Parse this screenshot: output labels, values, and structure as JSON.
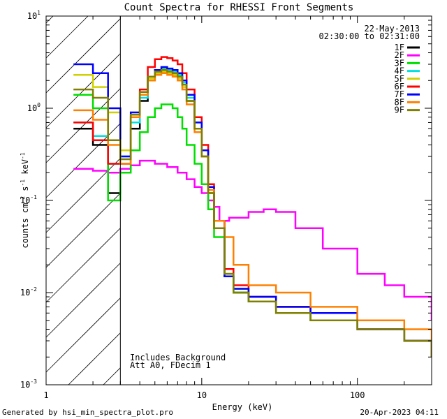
{
  "chart_data": {
    "type": "line",
    "title": "Count Spectra for RHESSI Front Segments",
    "xlabel": "Energy (keV)",
    "ylabel": "counts cm",
    "ylabel_sup1": "-2",
    "ylabel_mid": " s",
    "ylabel_sup2": "-1",
    "ylabel_unit": " keV",
    "ylabel_sup3": "-1",
    "xscale": "log",
    "yscale": "log",
    "xlim": [
      1,
      300
    ],
    "ylim": [
      0.001,
      10
    ],
    "x_major_ticks": [
      {
        "value": 1,
        "label": "1"
      },
      {
        "value": 10,
        "label": "10"
      },
      {
        "value": 100,
        "label": "100"
      }
    ],
    "y_major_ticks": [
      {
        "value": 0.001,
        "base": "10",
        "exp": "-3"
      },
      {
        "value": 0.01,
        "base": "10",
        "exp": "-2"
      },
      {
        "value": 0.1,
        "base": "10",
        "exp": "-1"
      },
      {
        "value": 1,
        "base": "10",
        "exp": "0"
      },
      {
        "value": 10,
        "base": "10",
        "exp": "1"
      }
    ],
    "date": "22-May-2013",
    "time_range": "02:30:00 to 02:31:00",
    "annotations": [
      "Includes Background",
      "Att A0, FDecim 1"
    ],
    "attenuator_edge_keV": 3,
    "legend_position": "top-right",
    "series": [
      {
        "name": "1F",
        "color": "#000000",
        "x": [
          1.5,
          2.0,
          2.5,
          3.0,
          3.5,
          4.0,
          4.5,
          5.0,
          5.5,
          6.0,
          6.5,
          7.0,
          7.5,
          8.0,
          9.0,
          10.0,
          11.0,
          12.0,
          14.0,
          16.0,
          20.0,
          30.0,
          50.0,
          100.0,
          200.0,
          300.0
        ],
        "y": [
          0.6,
          0.4,
          0.12,
          0.22,
          0.6,
          1.2,
          2.0,
          2.4,
          2.6,
          2.5,
          2.4,
          2.2,
          1.8,
          1.2,
          0.6,
          0.3,
          0.12,
          0.05,
          0.015,
          0.01,
          0.008,
          0.006,
          0.005,
          0.004,
          0.003,
          0.002
        ]
      },
      {
        "name": "2F",
        "color": "#ff00ff",
        "x": [
          1.5,
          2.0,
          2.5,
          3.0,
          3.5,
          4.0,
          5.0,
          6.0,
          7.0,
          8.0,
          9.0,
          10.0,
          11.0,
          12.0,
          13.0,
          15.0,
          20.0,
          25.0,
          30.0,
          40.0,
          60.0,
          100.0,
          150.0,
          200.0,
          300.0
        ],
        "y": [
          0.22,
          0.21,
          0.2,
          0.22,
          0.24,
          0.27,
          0.25,
          0.23,
          0.2,
          0.17,
          0.14,
          0.12,
          0.1,
          0.085,
          0.06,
          0.065,
          0.075,
          0.08,
          0.075,
          0.05,
          0.03,
          0.016,
          0.012,
          0.009,
          0.005
        ]
      },
      {
        "name": "3F",
        "color": "#00e000",
        "x": [
          1.5,
          2.0,
          2.5,
          3.0,
          3.5,
          4.0,
          4.5,
          5.0,
          5.5,
          6.0,
          6.5,
          7.0,
          7.5,
          8.0,
          9.0,
          10.0,
          11.0,
          12.0,
          14.0,
          16.0,
          20.0,
          30.0,
          50.0,
          100.0,
          200.0,
          300.0
        ],
        "y": [
          1.4,
          1.0,
          0.1,
          0.2,
          0.35,
          0.55,
          0.8,
          1.0,
          1.1,
          1.1,
          1.0,
          0.8,
          0.6,
          0.4,
          0.25,
          0.15,
          0.08,
          0.04,
          0.015,
          0.01,
          0.008,
          0.006,
          0.005,
          0.004,
          0.003,
          0.002
        ]
      },
      {
        "name": "4F",
        "color": "#00e0e0",
        "x": [
          1.5,
          2.0,
          2.5,
          3.0,
          3.5,
          4.0,
          4.5,
          5.0,
          5.5,
          6.0,
          6.5,
          7.0,
          7.5,
          8.0,
          9.0,
          10.0,
          11.0,
          12.0,
          14.0,
          16.0,
          20.0,
          30.0,
          50.0,
          100.0,
          200.0,
          300.0
        ],
        "y": [
          0.7,
          0.5,
          0.25,
          0.3,
          0.7,
          1.3,
          2.2,
          2.6,
          2.7,
          2.6,
          2.5,
          2.3,
          1.9,
          1.3,
          0.7,
          0.35,
          0.14,
          0.06,
          0.016,
          0.011,
          0.009,
          0.007,
          0.006,
          0.004,
          0.003,
          0.002
        ]
      },
      {
        "name": "5F",
        "color": "#d0d000",
        "x": [
          1.5,
          2.0,
          2.5,
          3.0,
          3.5,
          4.0,
          4.5,
          5.0,
          5.5,
          6.0,
          6.5,
          7.0,
          7.5,
          8.0,
          9.0,
          10.0,
          11.0,
          12.0,
          14.0,
          16.0,
          20.0,
          30.0,
          50.0,
          100.0,
          200.0,
          300.0
        ],
        "y": [
          2.3,
          1.7,
          0.9,
          0.35,
          0.9,
          1.5,
          2.1,
          2.4,
          2.5,
          2.4,
          2.3,
          2.1,
          1.7,
          1.2,
          0.6,
          0.3,
          0.12,
          0.05,
          0.016,
          0.011,
          0.009,
          0.007,
          0.006,
          0.004,
          0.003,
          0.002
        ]
      },
      {
        "name": "6F",
        "color": "#ff0000",
        "x": [
          1.5,
          2.0,
          2.5,
          3.0,
          3.5,
          4.0,
          4.5,
          5.0,
          5.5,
          6.0,
          6.5,
          7.0,
          7.5,
          8.0,
          9.0,
          10.0,
          11.0,
          12.0,
          14.0,
          16.0,
          20.0,
          30.0,
          50.0,
          100.0,
          200.0,
          300.0
        ],
        "y": [
          0.7,
          0.45,
          0.25,
          0.25,
          0.8,
          1.6,
          2.8,
          3.4,
          3.6,
          3.5,
          3.3,
          3.0,
          2.4,
          1.6,
          0.8,
          0.4,
          0.15,
          0.06,
          0.018,
          0.012,
          0.009,
          0.007,
          0.006,
          0.004,
          0.003,
          0.002
        ]
      },
      {
        "name": "7F",
        "color": "#0000ff",
        "x": [
          1.5,
          2.0,
          2.5,
          3.0,
          3.5,
          4.0,
          4.5,
          5.0,
          5.5,
          6.0,
          6.5,
          7.0,
          7.5,
          8.0,
          9.0,
          10.0,
          11.0,
          12.0,
          14.0,
          16.0,
          20.0,
          30.0,
          50.0,
          100.0,
          200.0,
          300.0
        ],
        "y": [
          3.0,
          2.4,
          1.0,
          0.3,
          0.9,
          1.5,
          2.2,
          2.6,
          2.8,
          2.7,
          2.6,
          2.4,
          2.0,
          1.4,
          0.7,
          0.35,
          0.14,
          0.06,
          0.015,
          0.011,
          0.009,
          0.007,
          0.006,
          0.004,
          0.003,
          0.002
        ]
      },
      {
        "name": "8F",
        "color": "#ff8000",
        "x": [
          1.5,
          2.0,
          2.5,
          3.0,
          3.5,
          4.0,
          4.5,
          5.0,
          5.5,
          6.0,
          6.5,
          7.0,
          7.5,
          8.0,
          9.0,
          10.0,
          11.0,
          12.0,
          14.0,
          16.0,
          20.0,
          30.0,
          50.0,
          100.0,
          200.0,
          300.0
        ],
        "y": [
          0.95,
          0.75,
          0.4,
          0.25,
          0.8,
          1.4,
          2.0,
          2.3,
          2.4,
          2.3,
          2.2,
          2.0,
          1.6,
          1.1,
          0.55,
          0.3,
          0.13,
          0.06,
          0.04,
          0.02,
          0.012,
          0.01,
          0.007,
          0.005,
          0.004,
          0.002
        ]
      },
      {
        "name": "9F",
        "color": "#808000",
        "x": [
          1.5,
          2.0,
          2.5,
          3.0,
          3.5,
          4.0,
          4.5,
          5.0,
          5.5,
          6.0,
          6.5,
          7.0,
          7.5,
          8.0,
          9.0,
          10.0,
          11.0,
          12.0,
          14.0,
          16.0,
          20.0,
          30.0,
          50.0,
          100.0,
          200.0,
          300.0
        ],
        "y": [
          1.6,
          1.3,
          0.45,
          0.28,
          0.85,
          1.5,
          2.2,
          2.5,
          2.6,
          2.5,
          2.4,
          2.2,
          1.8,
          1.2,
          0.6,
          0.3,
          0.12,
          0.05,
          0.016,
          0.01,
          0.008,
          0.006,
          0.005,
          0.004,
          0.003,
          0.002
        ]
      }
    ]
  },
  "footer": {
    "generated_by": "Generated by hsi_min_spectra_plot.pro",
    "timestamp": "20-Apr-2023 04:11"
  }
}
